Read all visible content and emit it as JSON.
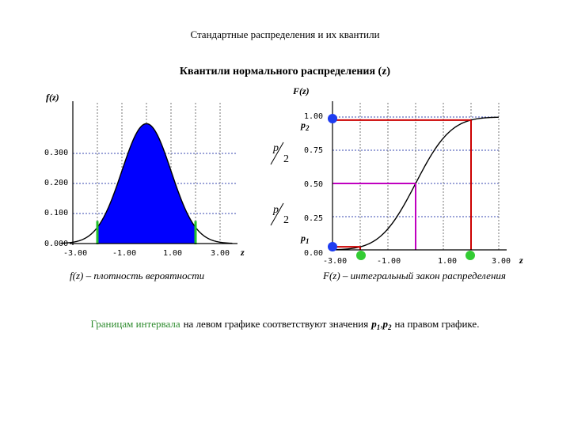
{
  "title": "Стандартные распределения и их квантили",
  "subtitle": "Квантили нормального распределения (z)",
  "left_chart": {
    "y_label": "f(z)",
    "x_label": "z",
    "y_ticks": [
      "0.000",
      "0.100",
      "0.200",
      "0.300"
    ],
    "x_ticks": [
      "-3.00",
      "-1.00",
      "1.00",
      "3.00"
    ],
    "caption": "f(z) – плотность вероятности"
  },
  "right_chart": {
    "y_label": "F(z)",
    "x_label": "z",
    "y_ticks": [
      "0.00",
      "0.25",
      "0.50",
      "0.75",
      "1.00"
    ],
    "x_ticks": [
      "-3.00",
      "-1.00",
      "1.00",
      "3.00"
    ],
    "p1_label": "p1",
    "p2_label": "p2",
    "caption": "F(z) – интегральный закон распределения"
  },
  "fraction": {
    "numerator": "p",
    "denominator": "2"
  },
  "bottom_note": {
    "green_part": "Границам интервала",
    "rest_part": "на левом графике соответствуют значения",
    "p1": "p1",
    "sep": ",",
    "p2": "p2",
    "end_part": "на правом графике."
  },
  "colors": {
    "fill": "#0000ff",
    "grid": "#3a4ab0",
    "red": "#cc0000",
    "magenta": "#c000c0",
    "green": "#22c02a",
    "green_text": "#2e8b2e",
    "marker_blue": "#1e3cf0",
    "marker_green": "#33cc33"
  },
  "chart_data": [
    {
      "type": "area",
      "series": [
        {
          "name": "",
          "function": "standard normal density"
        }
      ],
      "xlim": [
        -3.5,
        3.5
      ],
      "ylim": [
        0,
        0.42
      ],
      "x_ticks": [
        -3,
        -1,
        1,
        3
      ],
      "y_ticks": [
        0,
        0.1,
        0.2,
        0.3
      ],
      "shaded_interval": [
        -2,
        2
      ],
      "grid": true,
      "xlabel": "z",
      "ylabel": "f(z)"
    },
    {
      "type": "line",
      "series": [
        {
          "name": "",
          "function": "standard normal CDF"
        }
      ],
      "xlim": [
        -3.5,
        3.5
      ],
      "ylim": [
        0,
        1
      ],
      "x_ticks": [
        -3,
        -1,
        1,
        3
      ],
      "y_ticks": [
        0,
        0.25,
        0.5,
        0.75,
        1
      ],
      "guides": [
        {
          "x": -2,
          "y": 0.02,
          "color": "red"
        },
        {
          "x": 0,
          "y": 0.5,
          "color": "magenta"
        },
        {
          "x": 2,
          "y": 0.98,
          "color": "red"
        }
      ],
      "grid": true,
      "xlabel": "z",
      "ylabel": "F(z)"
    }
  ]
}
